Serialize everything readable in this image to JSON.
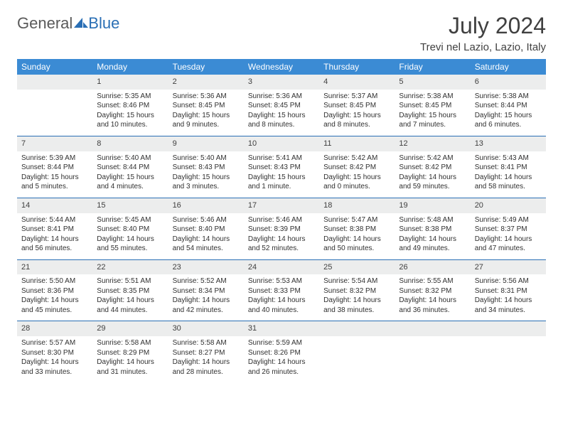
{
  "logo": {
    "text1": "General",
    "text2": "Blue"
  },
  "title": "July 2024",
  "location": "Trevi nel Lazio, Lazio, Italy",
  "colors": {
    "header_bg": "#3b8bd4",
    "header_text": "#ffffff",
    "daynum_bg": "#eceded",
    "border": "#2a6fb5",
    "text": "#303030",
    "logo_gray": "#5a5a5a",
    "logo_blue": "#2a6fb5"
  },
  "day_headers": [
    "Sunday",
    "Monday",
    "Tuesday",
    "Wednesday",
    "Thursday",
    "Friday",
    "Saturday"
  ],
  "weeks": [
    {
      "nums": [
        "",
        "1",
        "2",
        "3",
        "4",
        "5",
        "6"
      ],
      "cells": [
        [],
        [
          "Sunrise: 5:35 AM",
          "Sunset: 8:46 PM",
          "Daylight: 15 hours and 10 minutes."
        ],
        [
          "Sunrise: 5:36 AM",
          "Sunset: 8:45 PM",
          "Daylight: 15 hours and 9 minutes."
        ],
        [
          "Sunrise: 5:36 AM",
          "Sunset: 8:45 PM",
          "Daylight: 15 hours and 8 minutes."
        ],
        [
          "Sunrise: 5:37 AM",
          "Sunset: 8:45 PM",
          "Daylight: 15 hours and 8 minutes."
        ],
        [
          "Sunrise: 5:38 AM",
          "Sunset: 8:45 PM",
          "Daylight: 15 hours and 7 minutes."
        ],
        [
          "Sunrise: 5:38 AM",
          "Sunset: 8:44 PM",
          "Daylight: 15 hours and 6 minutes."
        ]
      ]
    },
    {
      "nums": [
        "7",
        "8",
        "9",
        "10",
        "11",
        "12",
        "13"
      ],
      "cells": [
        [
          "Sunrise: 5:39 AM",
          "Sunset: 8:44 PM",
          "Daylight: 15 hours and 5 minutes."
        ],
        [
          "Sunrise: 5:40 AM",
          "Sunset: 8:44 PM",
          "Daylight: 15 hours and 4 minutes."
        ],
        [
          "Sunrise: 5:40 AM",
          "Sunset: 8:43 PM",
          "Daylight: 15 hours and 3 minutes."
        ],
        [
          "Sunrise: 5:41 AM",
          "Sunset: 8:43 PM",
          "Daylight: 15 hours and 1 minute."
        ],
        [
          "Sunrise: 5:42 AM",
          "Sunset: 8:42 PM",
          "Daylight: 15 hours and 0 minutes."
        ],
        [
          "Sunrise: 5:42 AM",
          "Sunset: 8:42 PM",
          "Daylight: 14 hours and 59 minutes."
        ],
        [
          "Sunrise: 5:43 AM",
          "Sunset: 8:41 PM",
          "Daylight: 14 hours and 58 minutes."
        ]
      ]
    },
    {
      "nums": [
        "14",
        "15",
        "16",
        "17",
        "18",
        "19",
        "20"
      ],
      "cells": [
        [
          "Sunrise: 5:44 AM",
          "Sunset: 8:41 PM",
          "Daylight: 14 hours and 56 minutes."
        ],
        [
          "Sunrise: 5:45 AM",
          "Sunset: 8:40 PM",
          "Daylight: 14 hours and 55 minutes."
        ],
        [
          "Sunrise: 5:46 AM",
          "Sunset: 8:40 PM",
          "Daylight: 14 hours and 54 minutes."
        ],
        [
          "Sunrise: 5:46 AM",
          "Sunset: 8:39 PM",
          "Daylight: 14 hours and 52 minutes."
        ],
        [
          "Sunrise: 5:47 AM",
          "Sunset: 8:38 PM",
          "Daylight: 14 hours and 50 minutes."
        ],
        [
          "Sunrise: 5:48 AM",
          "Sunset: 8:38 PM",
          "Daylight: 14 hours and 49 minutes."
        ],
        [
          "Sunrise: 5:49 AM",
          "Sunset: 8:37 PM",
          "Daylight: 14 hours and 47 minutes."
        ]
      ]
    },
    {
      "nums": [
        "21",
        "22",
        "23",
        "24",
        "25",
        "26",
        "27"
      ],
      "cells": [
        [
          "Sunrise: 5:50 AM",
          "Sunset: 8:36 PM",
          "Daylight: 14 hours and 45 minutes."
        ],
        [
          "Sunrise: 5:51 AM",
          "Sunset: 8:35 PM",
          "Daylight: 14 hours and 44 minutes."
        ],
        [
          "Sunrise: 5:52 AM",
          "Sunset: 8:34 PM",
          "Daylight: 14 hours and 42 minutes."
        ],
        [
          "Sunrise: 5:53 AM",
          "Sunset: 8:33 PM",
          "Daylight: 14 hours and 40 minutes."
        ],
        [
          "Sunrise: 5:54 AM",
          "Sunset: 8:32 PM",
          "Daylight: 14 hours and 38 minutes."
        ],
        [
          "Sunrise: 5:55 AM",
          "Sunset: 8:32 PM",
          "Daylight: 14 hours and 36 minutes."
        ],
        [
          "Sunrise: 5:56 AM",
          "Sunset: 8:31 PM",
          "Daylight: 14 hours and 34 minutes."
        ]
      ]
    },
    {
      "nums": [
        "28",
        "29",
        "30",
        "31",
        "",
        "",
        ""
      ],
      "cells": [
        [
          "Sunrise: 5:57 AM",
          "Sunset: 8:30 PM",
          "Daylight: 14 hours and 33 minutes."
        ],
        [
          "Sunrise: 5:58 AM",
          "Sunset: 8:29 PM",
          "Daylight: 14 hours and 31 minutes."
        ],
        [
          "Sunrise: 5:58 AM",
          "Sunset: 8:27 PM",
          "Daylight: 14 hours and 28 minutes."
        ],
        [
          "Sunrise: 5:59 AM",
          "Sunset: 8:26 PM",
          "Daylight: 14 hours and 26 minutes."
        ],
        [],
        [],
        []
      ]
    }
  ]
}
